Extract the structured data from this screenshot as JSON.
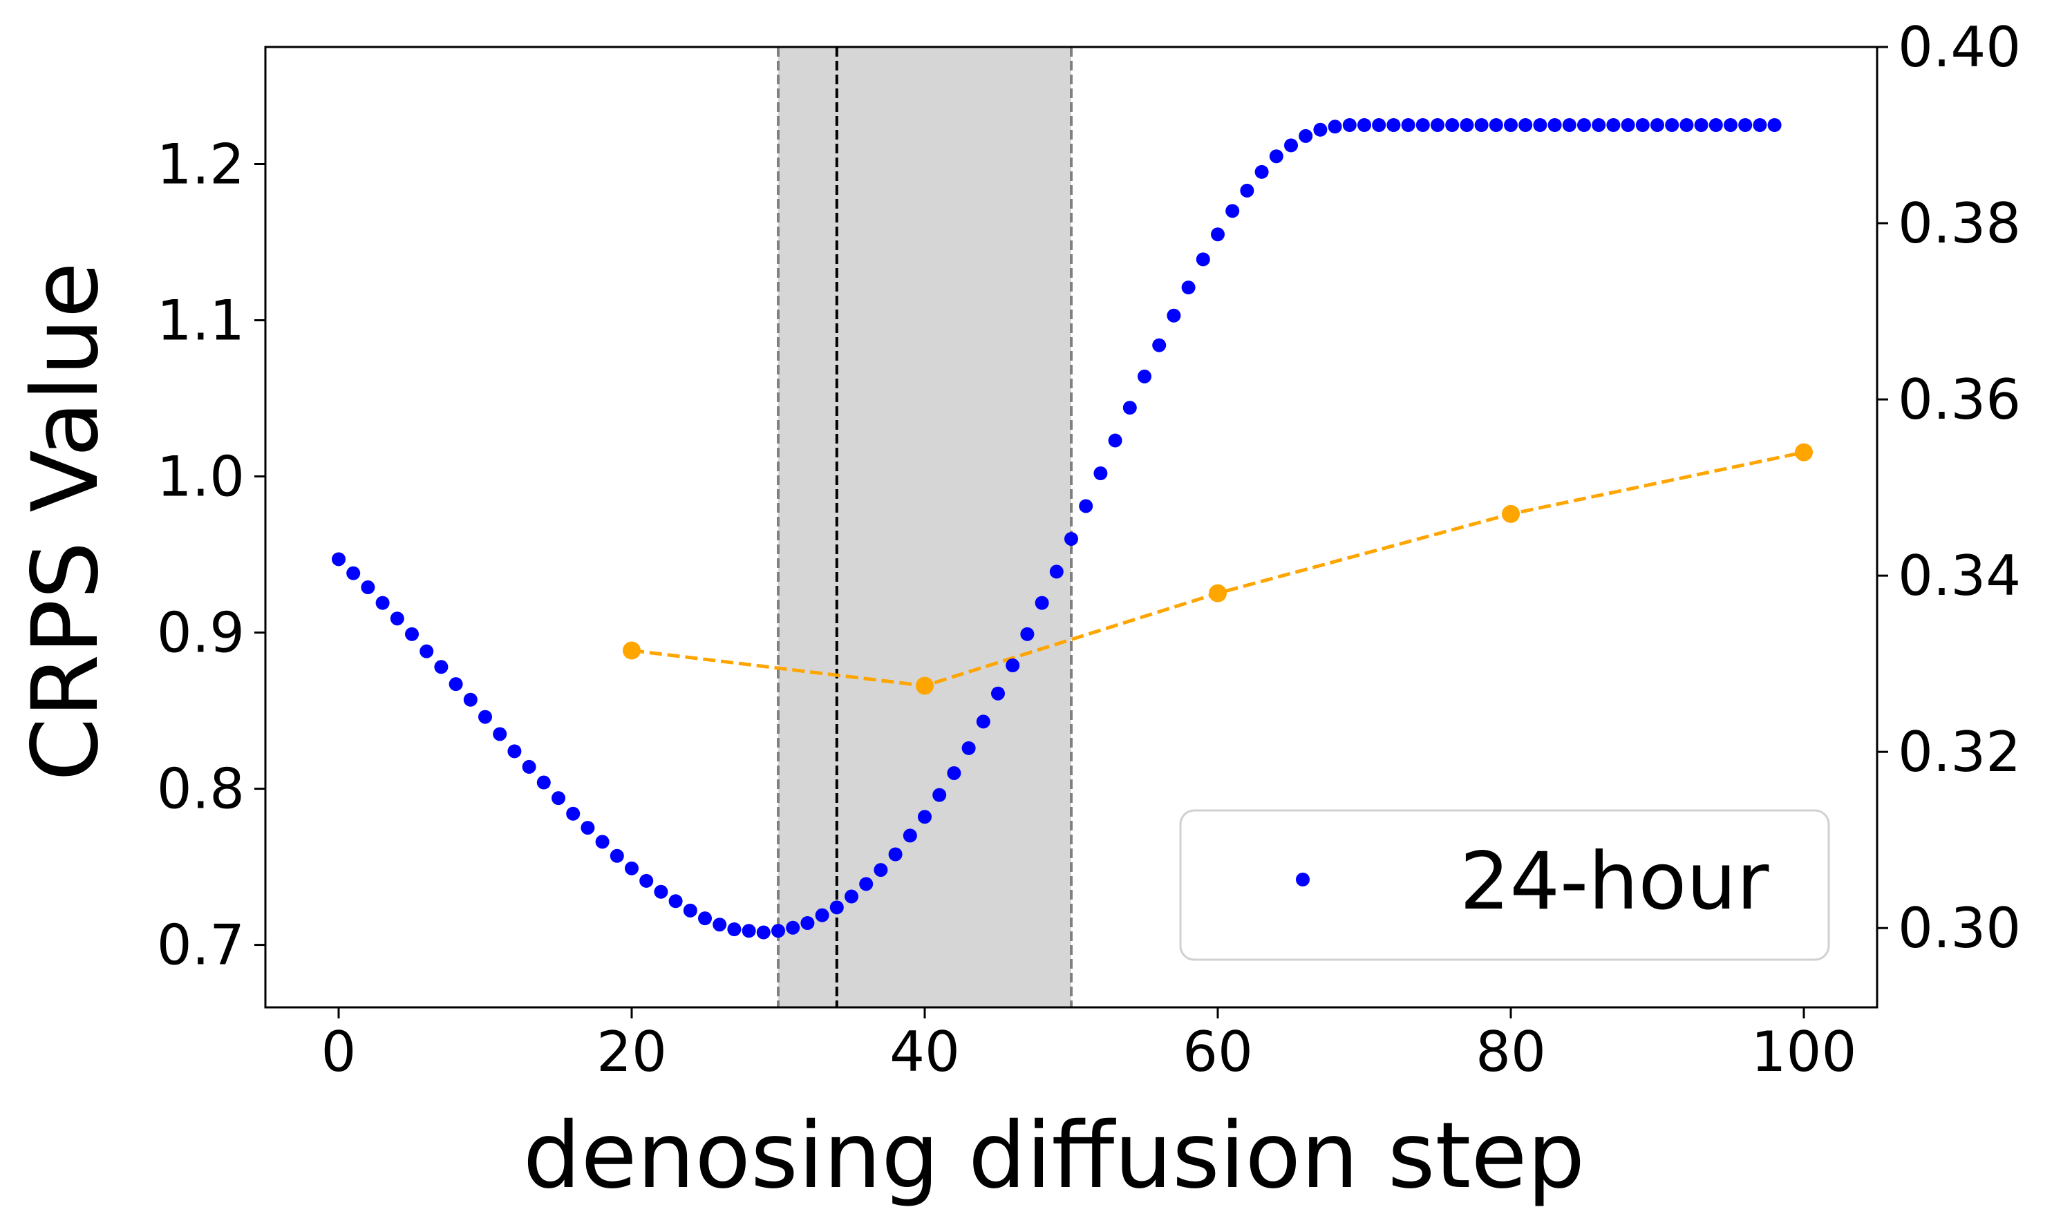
{
  "chart_data": {
    "type": "scatter",
    "xlabel": "denosing diffusion step",
    "ylabel": "CRPS Value",
    "xlim": [
      -5,
      105
    ],
    "ylim": [
      0.66,
      1.275
    ],
    "y2lim": [
      0.291,
      0.4
    ],
    "xticks": [
      "0",
      "20",
      "40",
      "60",
      "80",
      "100"
    ],
    "yticks": [
      "0.7",
      "0.8",
      "0.9",
      "1.0",
      "1.1",
      "1.2"
    ],
    "y2ticks": [
      "0.30",
      "0.32",
      "0.34",
      "0.36",
      "0.38",
      "0.40"
    ],
    "shaded_region": {
      "x_start": 30,
      "x_end": 50,
      "color": "#d6d6d6"
    },
    "vertical_line": {
      "x": 34,
      "color": "#000000",
      "style": "dashed"
    },
    "colors": {
      "series_24h": "#0000ff",
      "series_secondary": "#ffa500"
    },
    "series": [
      {
        "name": "24-hour",
        "axis": "left",
        "style": "dots",
        "x": [
          0,
          1,
          2,
          3,
          4,
          5,
          6,
          7,
          8,
          9,
          10,
          11,
          12,
          13,
          14,
          15,
          16,
          17,
          18,
          19,
          20,
          21,
          22,
          23,
          24,
          25,
          26,
          27,
          28,
          29,
          30,
          31,
          32,
          33,
          34,
          35,
          36,
          37,
          38,
          39,
          40,
          41,
          42,
          43,
          44,
          45,
          46,
          47,
          48,
          49,
          50,
          51,
          52,
          53,
          54,
          55,
          56,
          57,
          58,
          59,
          60,
          61,
          62,
          63,
          64,
          65,
          66,
          67,
          68,
          69,
          70,
          71,
          72,
          73,
          74,
          75,
          76,
          77,
          78,
          79,
          80,
          81,
          82,
          83,
          84,
          85,
          86,
          87,
          88,
          89,
          90,
          91,
          92,
          93,
          94,
          95,
          96,
          97,
          98
        ],
        "values": [
          0.947,
          0.938,
          0.929,
          0.919,
          0.909,
          0.899,
          0.888,
          0.878,
          0.867,
          0.857,
          0.846,
          0.835,
          0.824,
          0.814,
          0.804,
          0.794,
          0.784,
          0.775,
          0.766,
          0.757,
          0.749,
          0.741,
          0.734,
          0.728,
          0.722,
          0.717,
          0.713,
          0.71,
          0.709,
          0.708,
          0.709,
          0.711,
          0.714,
          0.719,
          0.724,
          0.731,
          0.739,
          0.748,
          0.758,
          0.77,
          0.782,
          0.796,
          0.81,
          0.826,
          0.843,
          0.861,
          0.879,
          0.899,
          0.919,
          0.939,
          0.96,
          0.981,
          1.002,
          1.023,
          1.044,
          1.064,
          1.084,
          1.103,
          1.121,
          1.139,
          1.155,
          1.17,
          1.183,
          1.195,
          1.205,
          1.212,
          1.218,
          1.222,
          1.224,
          1.225,
          1.225,
          1.225,
          1.225,
          1.225,
          1.225,
          1.225,
          1.225,
          1.225,
          1.225,
          1.225,
          1.225,
          1.225,
          1.225,
          1.225,
          1.225,
          1.225,
          1.225,
          1.225,
          1.225,
          1.225,
          1.225,
          1.225,
          1.225,
          1.225,
          1.225,
          1.225,
          1.225,
          1.225,
          1.225
        ]
      },
      {
        "name": "",
        "axis": "right",
        "style": "dashed-line-markers",
        "x": [
          20,
          40,
          60,
          80,
          100
        ],
        "values": [
          0.3315,
          0.3275,
          0.338,
          0.347,
          0.354
        ]
      }
    ],
    "legend": {
      "label": "24-hour",
      "position": "lower-right"
    }
  }
}
